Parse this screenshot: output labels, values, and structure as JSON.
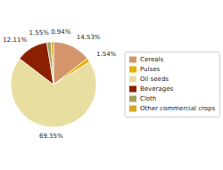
{
  "chart_data": {
    "type": "pie",
    "categories": [
      "Cereals",
      "Pulses",
      "Oil seeds",
      "Beverages",
      "Cloth",
      "Other commercial crops"
    ],
    "values": [
      14.53,
      1.54,
      69.35,
      12.11,
      1.55,
      0.94
    ],
    "value_labels": [
      "14.53%",
      "1.54%",
      "69.35%",
      "12.11%",
      "1.55%",
      "0.94%"
    ],
    "colors": [
      "#d4956a",
      "#e8b000",
      "#e8dea0",
      "#8b2000",
      "#a0a060",
      "#d4a820"
    ],
    "data_labels": true,
    "legend": "right"
  }
}
